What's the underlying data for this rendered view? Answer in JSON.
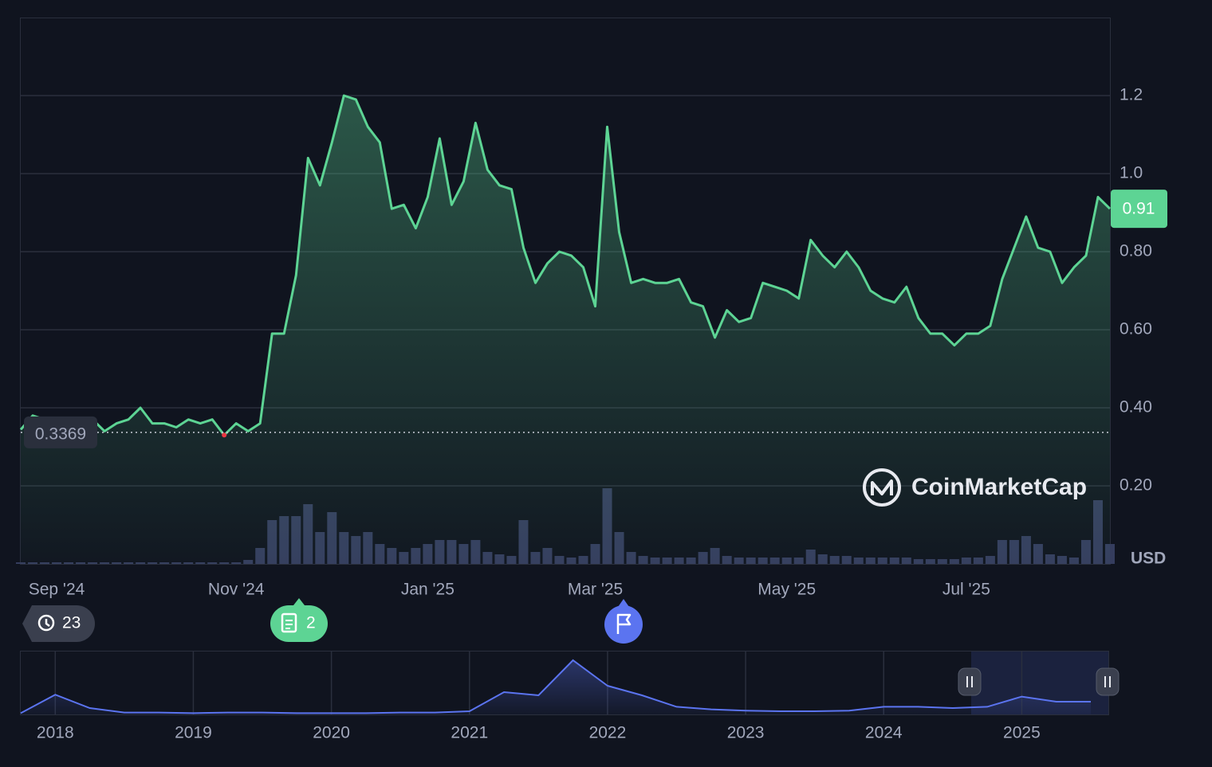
{
  "chart_data": [
    {
      "type": "area",
      "categories": [
        null,
        null,
        null,
        "Sep '24",
        null,
        null,
        null,
        null,
        null,
        null,
        null,
        null,
        null,
        null,
        null,
        null,
        null,
        null,
        "Nov '24",
        null,
        null,
        null,
        null,
        null,
        null,
        null,
        null,
        null,
        null,
        null,
        null,
        null,
        null,
        null,
        "Jan '25",
        null,
        null,
        null,
        null,
        null,
        null,
        null,
        null,
        null,
        null,
        null,
        null,
        null,
        "Mar '25",
        null,
        null,
        null,
        null,
        null,
        null,
        null,
        null,
        null,
        null,
        null,
        null,
        null,
        null,
        null,
        "May '25",
        null,
        null,
        null,
        null,
        null,
        null,
        null,
        null,
        null,
        null,
        null,
        null,
        null,
        null,
        "Jul '25",
        null,
        null,
        null,
        null,
        null,
        null,
        null,
        null,
        null,
        null,
        null,
        null
      ],
      "values": [
        0.344,
        0.38,
        0.37,
        0.35,
        0.35,
        0.36,
        0.37,
        0.34,
        0.36,
        0.37,
        0.4,
        0.36,
        0.36,
        0.35,
        0.37,
        0.36,
        0.37,
        0.33,
        0.36,
        0.34,
        0.36,
        0.59,
        0.59,
        0.74,
        1.04,
        0.97,
        1.08,
        1.2,
        1.19,
        1.12,
        1.08,
        0.91,
        0.92,
        0.86,
        0.94,
        1.09,
        0.92,
        0.98,
        1.13,
        1.01,
        0.97,
        0.96,
        0.81,
        0.72,
        0.77,
        0.8,
        0.79,
        0.76,
        0.66,
        1.12,
        0.85,
        0.72,
        0.73,
        0.72,
        0.72,
        0.73,
        0.67,
        0.66,
        0.58,
        0.65,
        0.62,
        0.63,
        0.72,
        0.71,
        0.7,
        0.68,
        0.83,
        0.79,
        0.76,
        0.8,
        0.76,
        0.7,
        0.68,
        0.67,
        0.71,
        0.63,
        0.59,
        0.59,
        0.56,
        0.59,
        0.59,
        0.61,
        0.73,
        0.81,
        0.89,
        0.81,
        0.8,
        0.72,
        0.76,
        0.79,
        0.94,
        0.91
      ],
      "color": "#5dd494",
      "ylim": [
        0,
        1.4
      ],
      "yticks": [
        {
          "value": 0.2,
          "label": "0.20"
        },
        {
          "value": 0.4,
          "label": "0.40"
        },
        {
          "value": 0.6,
          "label": "0.60"
        },
        {
          "value": 0.8,
          "label": "0.80"
        },
        {
          "value": 1,
          "label": "1.0"
        },
        1.2
      ],
      "grid": true,
      "start_price": 0.3369,
      "currency": "USD",
      "brand": "CoinMarketCap",
      "events": [
        23,
        2
      ]
    },
    {
      "type": "bar",
      "values": [
        2,
        2,
        2,
        2,
        2,
        2,
        2,
        2,
        2,
        2,
        2,
        2,
        2,
        2,
        2,
        2,
        2,
        2,
        2,
        5,
        20,
        55,
        60,
        60,
        75,
        40,
        65,
        40,
        35,
        40,
        25,
        20,
        15,
        20,
        25,
        30,
        30,
        25,
        30,
        15,
        12,
        10,
        55,
        15,
        20,
        10,
        8,
        10,
        25,
        95,
        40,
        15,
        10,
        8,
        8,
        8,
        8,
        15,
        20,
        10,
        8,
        8,
        8,
        8,
        8,
        8,
        18,
        12,
        10,
        10,
        8,
        8,
        8,
        8,
        8,
        6,
        6,
        6,
        6,
        8,
        8,
        10,
        30,
        30,
        35,
        25,
        12,
        10,
        8,
        30,
        80,
        25
      ],
      "color": "#353d5e",
      "ylim": [
        0,
        100
      ]
    },
    {
      "type": "line",
      "categories": [
        null,
        "2018",
        null,
        null,
        null,
        "2019",
        null,
        null,
        null,
        "2020",
        null,
        null,
        null,
        "2021",
        null,
        null,
        null,
        "2022",
        null,
        null,
        null,
        "2023",
        null,
        null,
        null,
        "2024",
        null,
        null,
        null,
        "2025",
        null,
        null
      ],
      "values": [
        2,
        31,
        10,
        3,
        3,
        2,
        3,
        3,
        2,
        2,
        2,
        3,
        3,
        5,
        35,
        30,
        85,
        45,
        30,
        12,
        8,
        6,
        5,
        5,
        6,
        12,
        12,
        10,
        12,
        28,
        20,
        20
      ],
      "color": "#5b74f0",
      "ylim": [
        0,
        100
      ]
    }
  ]
}
